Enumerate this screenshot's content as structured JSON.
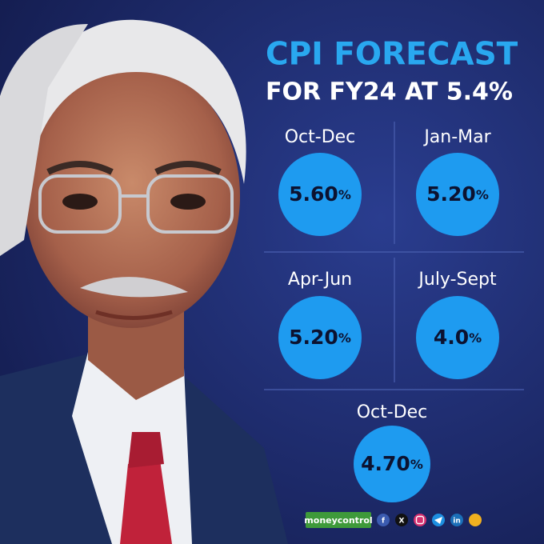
{
  "header": {
    "title": "CPI FORECAST",
    "subtitle": "FOR FY24 AT 5.4%"
  },
  "forecasts": [
    {
      "period": "Oct-Dec",
      "value": "5.60",
      "unit": "%"
    },
    {
      "period": "Jan-Mar",
      "value": "5.20",
      "unit": "%"
    },
    {
      "period": "Apr-Jun",
      "value": "5.20",
      "unit": "%"
    },
    {
      "period": "July-Sept",
      "value": "4.0",
      "unit": "%"
    },
    {
      "period": "Oct-Dec",
      "value": "4.70",
      "unit": "%"
    }
  ],
  "footer": {
    "brand": "moneycontrol",
    "social": [
      "f",
      "X",
      "in"
    ]
  }
}
